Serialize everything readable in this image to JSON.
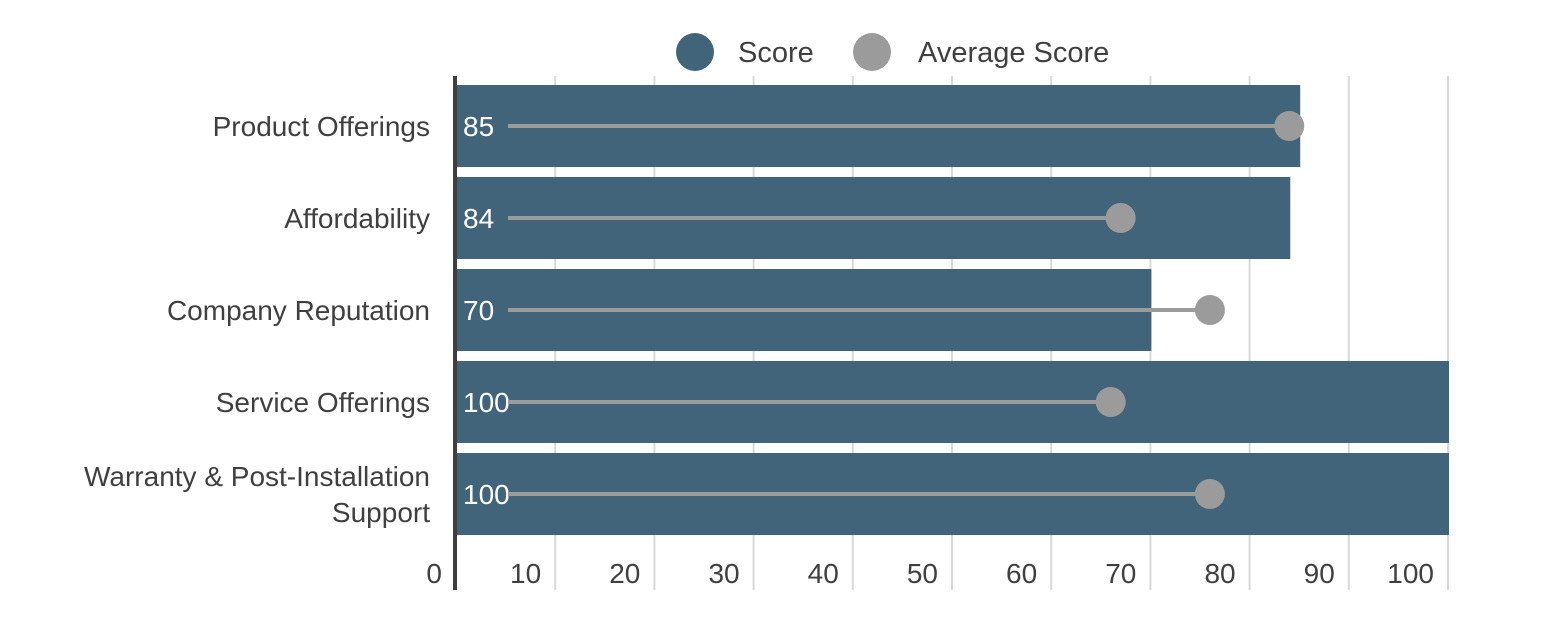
{
  "chart_data": {
    "type": "bar",
    "orientation": "horizontal",
    "categories": [
      [
        "Product Offerings"
      ],
      [
        "Affordability"
      ],
      [
        "Company Reputation"
      ],
      [
        "Service Offerings"
      ],
      [
        "Warranty & Post-Installation",
        "Support"
      ]
    ],
    "series": [
      {
        "name": "Score",
        "type": "bar",
        "values": [
          85,
          84,
          70,
          100,
          100
        ],
        "color": "#41647a"
      },
      {
        "name": "Average Score",
        "type": "lollipop",
        "values": [
          84,
          67,
          76,
          66,
          76
        ],
        "color": "#9b9b9b"
      }
    ],
    "data_labels": [
      "85",
      "84",
      "70",
      "100",
      "100"
    ],
    "xlim": [
      0,
      100
    ],
    "xticks": [
      0,
      10,
      20,
      30,
      40,
      50,
      60,
      70,
      80,
      90,
      100
    ],
    "grid": true,
    "legend": "top-center"
  }
}
